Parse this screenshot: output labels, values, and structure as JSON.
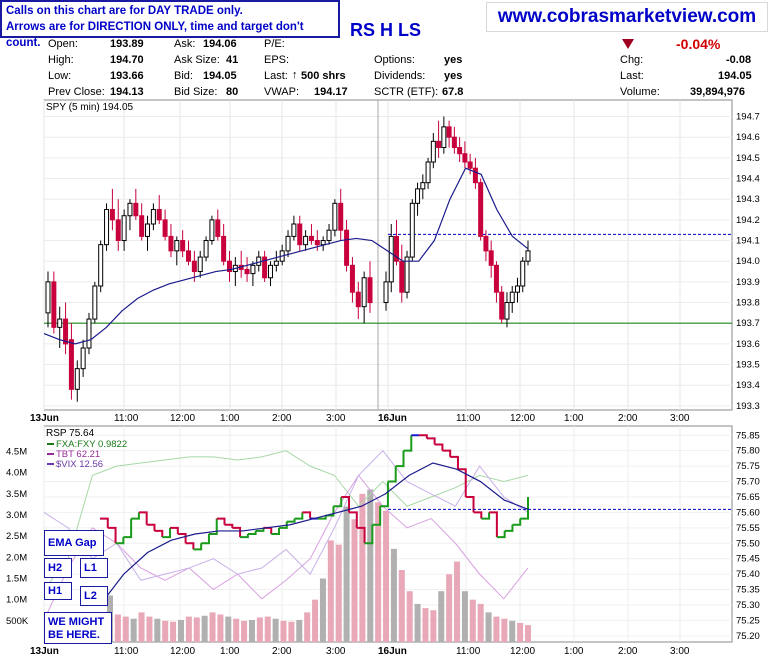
{
  "callout": {
    "line1": "Calls on this chart are for DAY TRADE only.",
    "line2": "Arrows are for DIRECTION ONLY, time and target don't count."
  },
  "website": "www.cobrasmarketview.com",
  "ticker_fragment": "RS H LS",
  "quote": {
    "open_label": "Open:",
    "open": "193.89",
    "high_label": "High:",
    "high": "194.70",
    "low_label": "Low:",
    "low": "193.66",
    "prev_close_label": "Prev Close:",
    "prev_close": "194.13",
    "ask_label": "Ask:",
    "ask": "194.06",
    "ask_size_label": "Ask Size:",
    "ask_size": "41",
    "bid_label": "Bid:",
    "bid": "194.05",
    "bid_size_label": "Bid Size:",
    "bid_size": "80",
    "pe_label": "P/E:",
    "pe": "",
    "eps_label": "EPS:",
    "eps": "",
    "last_size_label": "Last:",
    "last_size": "500 shrs",
    "vwap_label": "VWAP:",
    "vwap": "194.17",
    "options_label": "Options:",
    "options": "yes",
    "dividends_label": "Dividends:",
    "dividends": "yes",
    "sctr_label": "SCTR (ETF):",
    "sctr": "67.8",
    "chg_pct": "-0.04%",
    "chg_label": "Chg:",
    "chg": "-0.08",
    "last_label": "Last:",
    "last": "194.05",
    "volume_label": "Volume:",
    "volume": "39,894,976"
  },
  "annotations": {
    "ema_gap": "EMA Gap",
    "h2": "H2",
    "l1": "L1",
    "h1": "H1",
    "l2": "L2",
    "might": "WE MIGHT BE HERE."
  },
  "colors": {
    "up": "#000000",
    "down": "#c8003c",
    "ema": "#1a1a8c",
    "hline": "#1f8a1f",
    "dash": "#0000c8",
    "rsp_up": "#1a9a1a",
    "rsp_down": "#c8003c",
    "rsp_flat": "#1a1acc",
    "fxa": "#a8d8a8",
    "tbt": "#d8a0e0",
    "vix": "#c8b0e8"
  },
  "chart_data": [
    {
      "type": "line",
      "title": "SPY (5 min) 194.05",
      "x_ticks": [
        "13Jun",
        "11:00",
        "12:00",
        "1:00",
        "2:00",
        "3:00",
        "16Jun",
        "11:00",
        "12:00",
        "1:00",
        "2:00",
        "3:00"
      ],
      "ylim": [
        193.28,
        194.78
      ],
      "y_ticks": [
        193.3,
        193.4,
        193.5,
        193.6,
        193.7,
        193.8,
        193.9,
        194.0,
        194.1,
        194.2,
        194.3,
        194.4,
        194.5,
        194.6,
        194.7
      ],
      "ohlc": [
        [
          193.75,
          193.95,
          193.68,
          193.9
        ],
        [
          193.9,
          193.95,
          193.65,
          193.68
        ],
        [
          193.68,
          193.78,
          193.58,
          193.72
        ],
        [
          193.72,
          193.8,
          193.55,
          193.6
        ],
        [
          193.62,
          193.7,
          193.33,
          193.38
        ],
        [
          193.38,
          193.52,
          193.32,
          193.48
        ],
        [
          193.48,
          193.62,
          193.44,
          193.58
        ],
        [
          193.58,
          193.75,
          193.55,
          193.72
        ],
        [
          193.72,
          193.9,
          193.7,
          193.88
        ],
        [
          193.88,
          194.1,
          193.85,
          194.08
        ],
        [
          194.08,
          194.28,
          194.05,
          194.25
        ],
        [
          194.25,
          194.35,
          194.15,
          194.2
        ],
        [
          194.2,
          194.3,
          194.05,
          194.1
        ],
        [
          194.1,
          194.25,
          194.05,
          194.22
        ],
        [
          194.22,
          194.3,
          194.15,
          194.28
        ],
        [
          194.28,
          194.35,
          194.2,
          194.22
        ],
        [
          194.22,
          194.28,
          194.1,
          194.12
        ],
        [
          194.12,
          194.22,
          194.05,
          194.18
        ],
        [
          194.18,
          194.28,
          194.15,
          194.25
        ],
        [
          194.25,
          194.32,
          194.18,
          194.2
        ],
        [
          194.2,
          194.25,
          194.1,
          194.12
        ],
        [
          194.12,
          194.18,
          194.02,
          194.05
        ],
        [
          194.05,
          194.12,
          193.98,
          194.1
        ],
        [
          194.1,
          194.15,
          194.02,
          194.05
        ],
        [
          194.05,
          194.1,
          193.98,
          194.0
        ],
        [
          194.0,
          194.05,
          193.9,
          193.95
        ],
        [
          193.95,
          194.05,
          193.92,
          194.02
        ],
        [
          194.02,
          194.12,
          194.0,
          194.1
        ],
        [
          194.1,
          194.22,
          194.08,
          194.2
        ],
        [
          194.2,
          194.25,
          194.1,
          194.12
        ],
        [
          194.12,
          194.18,
          193.98,
          194.0
        ],
        [
          194.0,
          194.05,
          193.9,
          193.95
        ],
        [
          193.95,
          194.02,
          193.88,
          193.98
        ],
        [
          193.98,
          194.05,
          193.92,
          193.96
        ],
        [
          193.96,
          194.02,
          193.9,
          193.94
        ],
        [
          193.94,
          194.0,
          193.88,
          193.98
        ],
        [
          193.98,
          194.05,
          193.95,
          194.02
        ],
        [
          194.02,
          194.05,
          193.9,
          193.92
        ],
        [
          193.92,
          194.0,
          193.88,
          193.98
        ],
        [
          193.98,
          194.05,
          193.95,
          194.0
        ],
        [
          194.0,
          194.08,
          193.98,
          194.05
        ],
        [
          194.05,
          194.15,
          194.02,
          194.12
        ],
        [
          194.12,
          194.22,
          194.1,
          194.18
        ],
        [
          194.18,
          194.22,
          194.05,
          194.08
        ],
        [
          194.08,
          194.15,
          194.05,
          194.12
        ],
        [
          194.12,
          194.18,
          194.08,
          194.1
        ],
        [
          194.1,
          194.15,
          194.05,
          194.08
        ],
        [
          194.08,
          194.12,
          194.05,
          194.1
        ],
        [
          194.1,
          194.18,
          194.08,
          194.15
        ],
        [
          194.15,
          194.3,
          194.12,
          194.28
        ],
        [
          194.28,
          194.35,
          194.1,
          194.15
        ],
        [
          194.15,
          194.2,
          193.95,
          193.98
        ],
        [
          193.98,
          194.02,
          193.8,
          193.85
        ],
        [
          193.85,
          193.9,
          193.72,
          193.78
        ],
        [
          193.78,
          193.95,
          193.7,
          193.92
        ],
        [
          193.92,
          194.0,
          193.75,
          193.8
        ],
        [
          193.8,
          193.95,
          193.76,
          193.9
        ],
        [
          193.9,
          194.18,
          193.85,
          194.12
        ],
        [
          194.12,
          194.2,
          193.98,
          194.0
        ],
        [
          194.0,
          194.08,
          193.8,
          193.85
        ],
        [
          193.85,
          194.05,
          193.82,
          194.02
        ],
        [
          194.02,
          194.3,
          194.0,
          194.28
        ],
        [
          194.28,
          194.38,
          194.22,
          194.35
        ],
        [
          194.35,
          194.42,
          194.3,
          194.38
        ],
        [
          194.38,
          194.5,
          194.35,
          194.48
        ],
        [
          194.48,
          194.62,
          194.45,
          194.58
        ],
        [
          194.58,
          194.68,
          194.5,
          194.55
        ],
        [
          194.55,
          194.7,
          194.52,
          194.65
        ],
        [
          194.65,
          194.68,
          194.55,
          194.6
        ],
        [
          194.6,
          194.65,
          194.52,
          194.55
        ],
        [
          194.55,
          194.6,
          194.48,
          194.52
        ],
        [
          194.52,
          194.58,
          194.45,
          194.48
        ],
        [
          194.48,
          194.52,
          194.42,
          194.45
        ],
        [
          194.45,
          194.5,
          194.35,
          194.38
        ],
        [
          194.38,
          194.4,
          194.1,
          194.12
        ],
        [
          194.12,
          194.15,
          194.0,
          194.05
        ],
        [
          194.05,
          194.1,
          193.92,
          193.98
        ],
        [
          193.98,
          194.0,
          193.8,
          193.85
        ],
        [
          193.85,
          193.88,
          193.7,
          193.72
        ],
        [
          193.72,
          193.85,
          193.68,
          193.8
        ],
        [
          193.8,
          193.88,
          193.75,
          193.85
        ],
        [
          193.85,
          193.92,
          193.8,
          193.88
        ],
        [
          193.88,
          194.02,
          193.85,
          194.0
        ],
        [
          194.0,
          194.1,
          193.98,
          194.05
        ]
      ],
      "ema": [
        193.65,
        193.62,
        193.6,
        193.62,
        193.68,
        193.76,
        193.82,
        193.86,
        193.89,
        193.91,
        193.93,
        193.95,
        193.96,
        193.98,
        194.0,
        194.02,
        194.04,
        194.06,
        194.08,
        194.1,
        194.11,
        194.1,
        194.05,
        194.0,
        194.0,
        194.1,
        194.3,
        194.45,
        194.42,
        194.25,
        194.12,
        194.06
      ],
      "hlines": [
        {
          "y": 193.7,
          "style": "solid"
        },
        {
          "y": 194.13,
          "style": "dashed"
        }
      ]
    },
    {
      "type": "line",
      "title": "RSP 75.64",
      "legend": [
        "FXA:FXY 0.9822",
        "TBT 62.21",
        "$VIX 12.56"
      ],
      "x_ticks": [
        "13Jun",
        "11:00",
        "12:00",
        "1:00",
        "2:00",
        "3:00",
        "16Jun",
        "11:00",
        "12:00",
        "1:00",
        "2:00",
        "3:00"
      ],
      "y_ticks_right": [
        75.2,
        75.25,
        75.3,
        75.35,
        75.4,
        75.45,
        75.5,
        75.55,
        75.6,
        75.65,
        75.7,
        75.75,
        75.8,
        75.85
      ],
      "y_ticks_left": [
        "500K",
        "1.0M",
        "1.5M",
        "2.0M",
        "2.5M",
        "3.0M",
        "3.5M",
        "4.0M",
        "4.5M"
      ],
      "rsp": [
        75.58,
        75.55,
        75.5,
        75.52,
        75.58,
        75.6,
        75.56,
        75.54,
        75.52,
        75.55,
        75.53,
        75.5,
        75.48,
        75.5,
        75.53,
        75.58,
        75.56,
        75.55,
        75.52,
        75.53,
        75.54,
        75.55,
        75.53,
        75.55,
        75.57,
        75.58,
        75.6,
        75.58,
        75.58,
        75.59,
        75.62,
        75.65,
        75.6,
        75.55,
        75.5,
        75.56,
        75.62,
        75.7,
        75.75,
        75.8,
        75.85,
        75.85,
        75.84,
        75.82,
        75.8,
        75.78,
        75.74,
        75.65,
        75.6,
        75.58,
        75.6,
        75.52,
        75.54,
        75.56,
        75.58,
        75.65
      ],
      "volume_k": [
        1100,
        650,
        600,
        550,
        700,
        600,
        550,
        500,
        480,
        520,
        600,
        580,
        620,
        700,
        650,
        600,
        550,
        500,
        520,
        580,
        600,
        550,
        500,
        480,
        520,
        700,
        1000,
        1500,
        2400,
        2300,
        3200,
        2900,
        3500,
        3600,
        3300,
        3100,
        2200,
        1700,
        1200,
        900,
        800,
        750,
        1200,
        1600,
        1900,
        1200,
        1000,
        900,
        700,
        600,
        550,
        500,
        450,
        400
      ]
    }
  ]
}
